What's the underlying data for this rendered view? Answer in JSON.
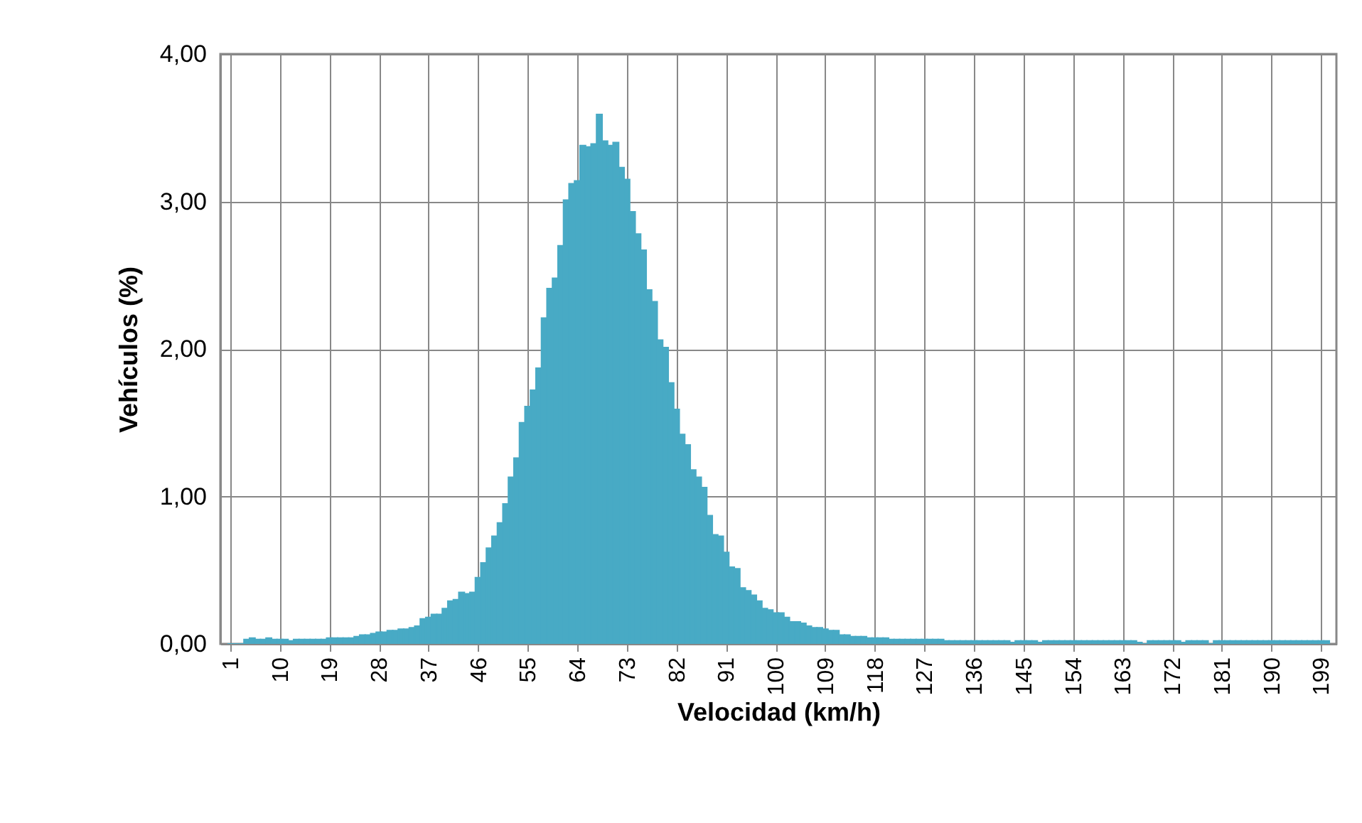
{
  "chart_data": {
    "type": "bar",
    "xlabel": "Velocidad (km/h)",
    "ylabel": "Vehículos (%)",
    "x": [
      1,
      2,
      3,
      4,
      5,
      6,
      7,
      8,
      9,
      10,
      11,
      12,
      13,
      14,
      15,
      16,
      17,
      18,
      19,
      20,
      21,
      22,
      23,
      24,
      25,
      26,
      27,
      28,
      29,
      30,
      31,
      32,
      33,
      34,
      35,
      36,
      37,
      38,
      39,
      40,
      41,
      42,
      43,
      44,
      45,
      46,
      47,
      48,
      49,
      50,
      51,
      52,
      53,
      54,
      55,
      56,
      57,
      58,
      59,
      60,
      61,
      62,
      63,
      64,
      65,
      66,
      67,
      68,
      69,
      70,
      71,
      72,
      73,
      74,
      75,
      76,
      77,
      78,
      79,
      80,
      81,
      82,
      83,
      84,
      85,
      86,
      87,
      88,
      89,
      90,
      91,
      92,
      93,
      94,
      95,
      96,
      97,
      98,
      99,
      100,
      101,
      102,
      103,
      104,
      105,
      106,
      107,
      108,
      109,
      110,
      111,
      112,
      113,
      114,
      115,
      116,
      117,
      118,
      119,
      120,
      121,
      122,
      123,
      124,
      125,
      126,
      127,
      128,
      129,
      130,
      131,
      132,
      133,
      134,
      135,
      136,
      137,
      138,
      139,
      140,
      141,
      142,
      143,
      144,
      145,
      146,
      147,
      148,
      149,
      150,
      151,
      152,
      153,
      154,
      155,
      156,
      157,
      158,
      159,
      160,
      161,
      162,
      163,
      164,
      165,
      166,
      167,
      168,
      169,
      170,
      171,
      172,
      173,
      174,
      175,
      176,
      177,
      178,
      179,
      180,
      181,
      182,
      183,
      184,
      185,
      186,
      187,
      188,
      189,
      190,
      191,
      192,
      193,
      194,
      195,
      196,
      197,
      198,
      199,
      200
    ],
    "series": [
      {
        "color": "#48aac5",
        "values": [
          0,
          0,
          0,
          0.03,
          0.04,
          0.03,
          0.03,
          0.04,
          0.03,
          0.03,
          0.03,
          0.02,
          0.03,
          0.03,
          0.03,
          0.03,
          0.03,
          0.03,
          0.04,
          0.04,
          0.04,
          0.04,
          0.04,
          0.05,
          0.06,
          0.06,
          0.07,
          0.08,
          0.08,
          0.09,
          0.09,
          0.1,
          0.1,
          0.11,
          0.12,
          0.17,
          0.18,
          0.2,
          0.2,
          0.24,
          0.29,
          0.3,
          0.35,
          0.34,
          0.35,
          0.45,
          0.55,
          0.65,
          0.73,
          0.82,
          0.95,
          1.13,
          1.26,
          1.5,
          1.61,
          1.72,
          1.87,
          2.21,
          2.41,
          2.48,
          2.7,
          3.01,
          3.12,
          3.14,
          3.38,
          3.37,
          3.39,
          3.59,
          3.41,
          3.38,
          3.4,
          3.23,
          3.15,
          2.93,
          2.78,
          2.67,
          2.4,
          2.32,
          2.06,
          2.01,
          1.77,
          1.59,
          1.42,
          1.35,
          1.18,
          1.13,
          1.06,
          0.87,
          0.74,
          0.73,
          0.62,
          0.52,
          0.51,
          0.38,
          0.36,
          0.33,
          0.29,
          0.24,
          0.23,
          0.21,
          0.21,
          0.18,
          0.15,
          0.15,
          0.14,
          0.12,
          0.11,
          0.11,
          0.1,
          0.09,
          0.09,
          0.06,
          0.06,
          0.05,
          0.05,
          0.05,
          0.04,
          0.04,
          0.04,
          0.04,
          0.03,
          0.03,
          0.03,
          0.03,
          0.03,
          0.03,
          0.03,
          0.03,
          0.03,
          0.03,
          0.02,
          0.02,
          0.02,
          0.02,
          0.02,
          0.02,
          0.02,
          0.02,
          0.02,
          0.02,
          0.02,
          0.02,
          0.01,
          0.02,
          0.02,
          0.02,
          0.02,
          0.01,
          0.02,
          0.02,
          0.02,
          0.02,
          0.02,
          0.02,
          0.02,
          0.02,
          0.02,
          0.02,
          0.02,
          0.02,
          0.02,
          0.02,
          0.02,
          0.02,
          0.02,
          0.01,
          0,
          0.02,
          0.02,
          0.02,
          0.02,
          0.02,
          0.02,
          0.01,
          0.02,
          0.02,
          0.02,
          0.02,
          0,
          0.02,
          0.02,
          0.02,
          0.02,
          0.02,
          0.02,
          0.02,
          0.02,
          0.02,
          0.02,
          0.02,
          0.02,
          0.02,
          0.02,
          0.02,
          0.02,
          0.02,
          0.02,
          0.02,
          0.02,
          0.02
        ]
      }
    ],
    "xlim": [
      0.5,
      200.5
    ],
    "xticks": [
      1,
      10,
      19,
      28,
      37,
      46,
      55,
      64,
      73,
      82,
      91,
      100,
      109,
      118,
      127,
      136,
      145,
      154,
      163,
      172,
      181,
      190,
      199
    ],
    "ylim": [
      0,
      4
    ],
    "yticks": [
      {
        "value": 0,
        "label": "0,00"
      },
      {
        "value": 1,
        "label": "1,00"
      },
      {
        "value": 2,
        "label": "2,00"
      },
      {
        "value": 3,
        "label": "3,00"
      },
      {
        "value": 4,
        "label": "4,00"
      }
    ],
    "grid": true
  }
}
